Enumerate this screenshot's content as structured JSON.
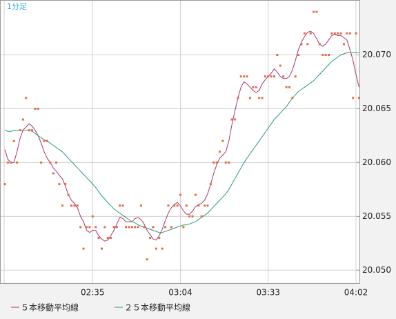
{
  "chart_data": {
    "type": "line",
    "title": "1分足",
    "categories": [
      null,
      null,
      null,
      null,
      null,
      null,
      null,
      null,
      null,
      null,
      null,
      null,
      null,
      null,
      null,
      null,
      null,
      null,
      null,
      null,
      null,
      null,
      null,
      null,
      null,
      null,
      null,
      null,
      null,
      "02:35",
      null,
      null,
      null,
      null,
      null,
      null,
      null,
      null,
      null,
      null,
      null,
      null,
      null,
      null,
      null,
      null,
      null,
      null,
      null,
      null,
      null,
      null,
      null,
      null,
      null,
      null,
      null,
      null,
      "03:04",
      null,
      null,
      null,
      null,
      null,
      null,
      null,
      null,
      null,
      null,
      null,
      null,
      null,
      null,
      null,
      null,
      null,
      null,
      null,
      null,
      null,
      null,
      null,
      null,
      null,
      null,
      null,
      null,
      "03:33",
      null,
      null,
      null,
      null,
      null,
      null,
      null,
      null,
      null,
      null,
      null,
      null,
      null,
      null,
      null,
      null,
      null,
      null,
      null,
      null,
      null,
      null,
      null,
      null,
      null,
      null,
      null,
      null,
      "04:02",
      null
    ],
    "values": [
      20.058,
      20.06,
      20.06,
      20.062,
      20.06,
      20.063,
      20.064,
      20.066,
      20.063,
      20.063,
      20.065,
      20.065,
      20.06,
      20.062,
      20.062,
      20.06,
      20.059,
      20.06,
      20.058,
      20.056,
      20.058,
      20.057,
      20.056,
      20.056,
      20.056,
      20.054,
      20.052,
      20.054,
      20.054,
      20.055,
      20.054,
      20.053,
      20.052,
      20.054,
      20.053,
      20.053,
      20.054,
      20.054,
      20.056,
      20.056,
      20.054,
      20.054,
      20.054,
      20.054,
      20.054,
      20.056,
      20.054,
      20.051,
      20.053,
      20.054,
      20.052,
      20.053,
      20.052,
      20.054,
      20.056,
      20.054,
      20.056,
      20.056,
      20.057,
      20.054,
      20.056,
      20.055,
      20.055,
      20.057,
      20.056,
      20.055,
      20.056,
      20.056,
      20.058,
      20.06,
      20.06,
      20.061,
      20.062,
      20.06,
      20.06,
      20.064,
      20.064,
      20.066,
      20.068,
      20.068,
      20.068,
      20.066,
      20.067,
      20.067,
      20.066,
      20.066,
      20.068,
      20.068,
      20.068,
      20.068,
      20.07,
      20.069,
      20.068,
      20.067,
      20.067,
      20.066,
      20.068,
      20.07,
      20.071,
      20.072,
      20.071,
      20.072,
      20.074,
      20.074,
      20.071,
      20.07,
      20.07,
      20.07,
      20.072,
      20.072,
      20.072,
      20.072,
      20.071,
      20.072,
      20.072,
      20.066,
      20.072,
      20.066
    ],
    "color": "#e06c4c",
    "series": [
      {
        "name": "５本移動平均線",
        "color": "#a8346c",
        "values": [
          20.0612,
          20.0603,
          20.06,
          20.06,
          20.061,
          20.0622,
          20.063,
          20.0633,
          20.0636,
          20.0634,
          20.063,
          20.0625,
          20.0618,
          20.061,
          20.0604,
          20.06,
          20.0595,
          20.0592,
          20.0588,
          20.0585,
          20.0578,
          20.057,
          20.0565,
          20.0562,
          20.0558,
          20.055,
          20.0545,
          20.0537,
          20.0535,
          20.0537,
          20.0537,
          20.0532,
          20.0529,
          20.0527,
          20.0528,
          20.0532,
          20.0537,
          20.0543,
          20.0549,
          20.0548,
          20.0545,
          20.0545,
          20.0545,
          20.0548,
          20.0549,
          20.0547,
          20.0543,
          20.0537,
          20.0533,
          20.0529,
          20.0528,
          20.0532,
          20.0538,
          20.0546,
          20.0553,
          20.0558,
          20.0561,
          20.0563,
          20.056,
          20.0555,
          20.0552,
          20.0552,
          20.0555,
          20.0559,
          20.0561,
          20.0562,
          20.0565,
          20.0571,
          20.058,
          20.059,
          20.0598,
          20.0604,
          20.0607,
          20.061,
          20.062,
          20.0635,
          20.0648,
          20.066,
          20.067,
          20.0675,
          20.0673,
          20.067,
          20.0667,
          20.0665,
          20.0667,
          20.0673,
          20.0677,
          20.068,
          20.0683,
          20.0687,
          20.0684,
          20.068,
          20.0678,
          20.0678,
          20.068,
          20.0686,
          20.0695,
          20.0705,
          20.0712,
          20.0717,
          20.0721,
          20.0722,
          20.072,
          20.0715,
          20.071,
          20.0708,
          20.071,
          20.0714,
          20.0718,
          20.0719,
          20.0718,
          20.0718,
          20.0716,
          20.0714,
          20.0705,
          20.0695,
          20.0682,
          20.067
        ]
      },
      {
        "name": "２５本移動平均線",
        "color": "#2a9a72",
        "values": [
          20.063,
          20.0629,
          20.0629,
          20.063,
          20.063,
          20.063,
          20.063,
          20.063,
          20.063,
          20.0629,
          20.0627,
          20.0625,
          20.0623,
          20.0621,
          20.062,
          20.0618,
          20.0616,
          20.0614,
          20.0612,
          20.061,
          20.0607,
          20.0604,
          20.0601,
          20.0598,
          20.0595,
          20.0592,
          20.0589,
          20.0586,
          20.0583,
          20.058,
          20.0577,
          20.0573,
          20.0569,
          20.0566,
          20.0563,
          20.056,
          20.0557,
          20.0555,
          20.0553,
          20.0551,
          20.0549,
          20.0547,
          20.0545,
          20.0544,
          20.0542,
          20.0541,
          20.054,
          20.0539,
          20.0538,
          20.0537,
          20.0536,
          20.0535,
          20.0535,
          20.0536,
          20.0537,
          20.0538,
          20.0539,
          20.054,
          20.0541,
          20.0542,
          20.0542,
          20.0543,
          20.0544,
          20.0545,
          20.0547,
          20.0549,
          20.0551,
          20.0553,
          20.0556,
          20.0559,
          20.0562,
          20.0565,
          20.0568,
          20.0571,
          20.0575,
          20.058,
          20.0585,
          20.059,
          20.0595,
          20.06,
          20.0604,
          20.0608,
          20.0612,
          20.0616,
          20.062,
          20.0624,
          20.0628,
          20.0632,
          20.0636,
          20.064,
          20.0643,
          20.0646,
          20.0649,
          20.0652,
          20.0656,
          20.066,
          20.0663,
          20.0666,
          20.0668,
          20.067,
          20.0672,
          20.0674,
          20.0676,
          20.0679,
          20.0682,
          20.0685,
          20.0688,
          20.0691,
          20.0694,
          20.0696,
          20.0698,
          20.07,
          20.0701,
          20.0702,
          20.0702,
          20.0702,
          20.0702,
          20.0702
        ]
      }
    ],
    "ylim": [
      20.0488,
      20.0751
    ],
    "yticks": [
      {
        "value": 20.05,
        "label": "20.050"
      },
      {
        "value": 20.055,
        "label": "20.055"
      },
      {
        "value": 20.06,
        "label": "20.060"
      },
      {
        "value": 20.065,
        "label": "20.065"
      },
      {
        "value": 20.07,
        "label": "20.070"
      }
    ],
    "grid": true
  }
}
